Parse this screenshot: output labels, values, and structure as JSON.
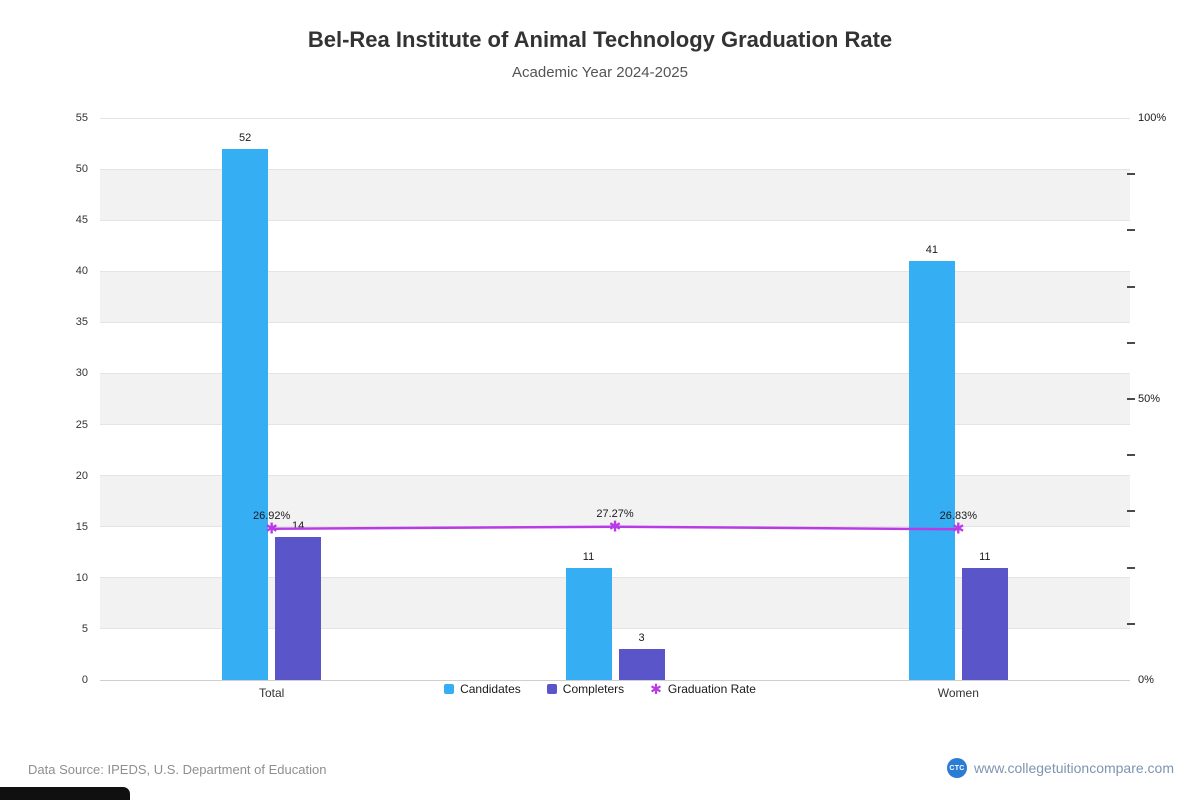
{
  "chart_data": {
    "type": "bar+line",
    "title": "Bel-Rea Institute of Animal Technology Graduation Rate",
    "subtitle": "Academic Year 2024-2025",
    "categories": [
      "Total",
      "",
      "Women"
    ],
    "series": [
      {
        "name": "Candidates",
        "values": [
          52,
          11,
          41
        ],
        "color": "#35AEF4"
      },
      {
        "name": "Completers",
        "values": [
          14,
          3,
          11
        ],
        "color": "#5A55C9"
      }
    ],
    "line": {
      "name": "Graduation Rate",
      "values": [
        26.92,
        27.27,
        26.83
      ],
      "labels": [
        "26.92%",
        "27.27%",
        "26.83%"
      ],
      "color": "#B93BE6",
      "marker_glyph": "✱",
      "axis": "right"
    },
    "left_axis": {
      "min": 0,
      "max": 55,
      "step": 5
    },
    "right_axis": {
      "min": 0,
      "max": 100,
      "minor_step": 10,
      "ticks": [
        {
          "value": 0,
          "label": "0%"
        },
        {
          "value": 50,
          "label": "50%"
        },
        {
          "value": 100,
          "label": "100%"
        }
      ]
    },
    "band_color": "#f2f2f2",
    "grid": "horizontal",
    "legend_position": "bottom-center"
  },
  "footer": {
    "source": "Data Source: IPEDS, U.S. Department of Education",
    "website": "www.collegetuitioncompare.com",
    "logo_text": "CTC"
  }
}
